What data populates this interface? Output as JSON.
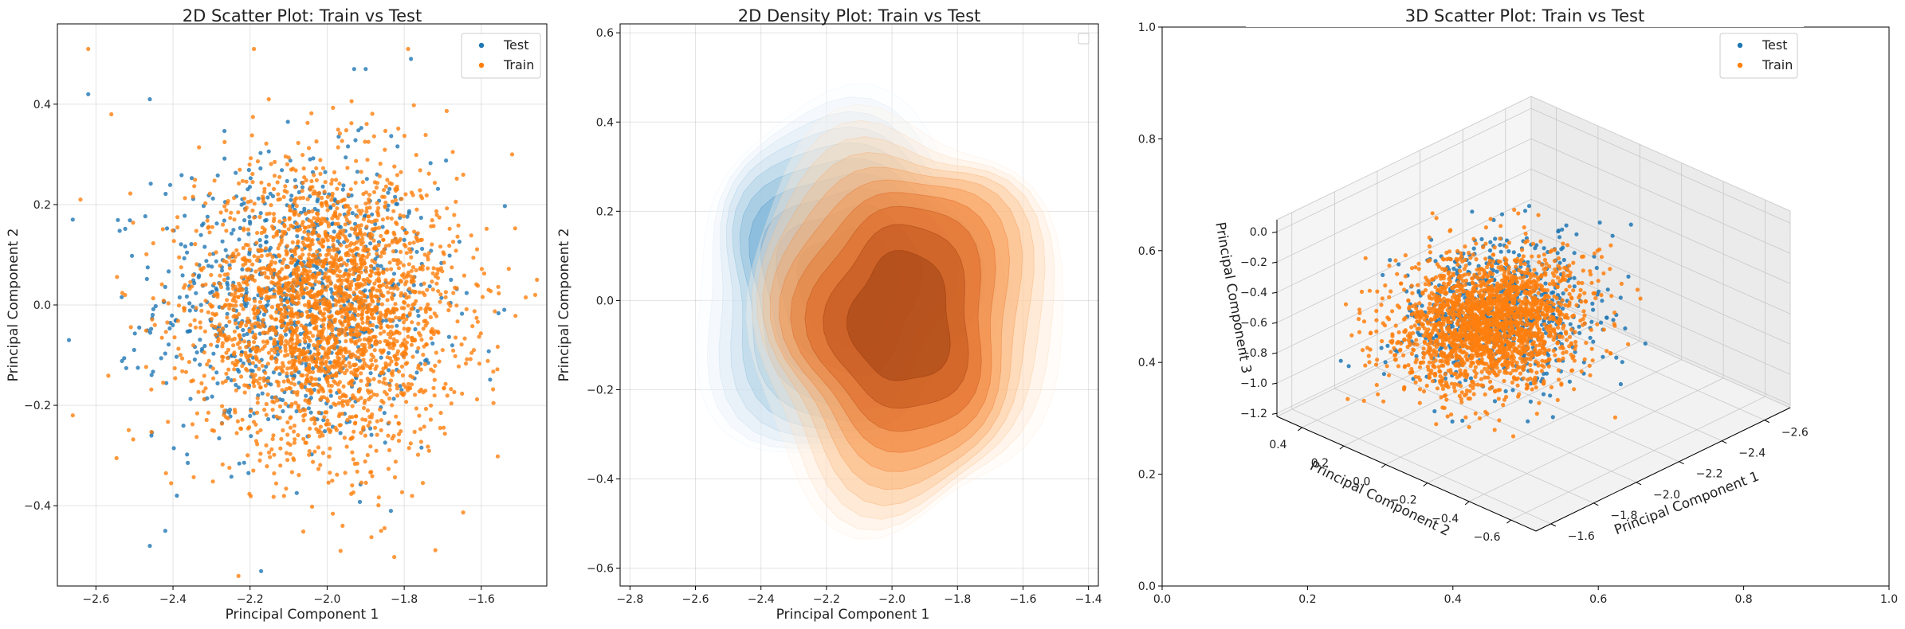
{
  "colors": {
    "test": "#1f77b4",
    "train": "#ff7f0e"
  },
  "chart_data": [
    {
      "type": "scatter",
      "title": "2D Scatter Plot: Train vs Test",
      "xlabel": "Principal Component 1",
      "ylabel": "Principal Component 2",
      "xlim": [
        -2.7,
        -1.43
      ],
      "ylim": [
        -0.56,
        0.56
      ],
      "xticks": [
        -2.6,
        -2.4,
        -2.2,
        -2.0,
        -1.8,
        -1.6
      ],
      "xtick_labels": [
        "−2.6",
        "−2.4",
        "−2.2",
        "−2.0",
        "−1.8",
        "−1.6"
      ],
      "yticks": [
        -0.4,
        -0.2,
        0.0,
        0.2,
        0.4
      ],
      "ytick_labels": [
        "−0.4",
        "−0.2",
        "0.0",
        "0.2",
        "0.4"
      ],
      "grid": true,
      "legend": {
        "location": "top-right",
        "entries": [
          "Test",
          "Train"
        ]
      },
      "series": [
        {
          "name": "Test",
          "color": "#1f77b4",
          "center": [
            -2.08,
            0.01
          ],
          "spread": [
            0.18,
            0.14
          ],
          "count": 900,
          "points": [
            [
              -2.46,
              -0.48
            ],
            [
              -2.42,
              -0.45
            ],
            [
              -2.67,
              -0.07
            ],
            [
              -2.62,
              0.42
            ],
            [
              -2.46,
              0.41
            ],
            [
              -2.39,
              -0.38
            ],
            [
              -1.93,
              0.47
            ],
            [
              -1.9,
              0.47
            ],
            [
              -2.66,
              0.17
            ]
          ]
        },
        {
          "name": "Train",
          "color": "#ff7f0e",
          "center": [
            -2.0,
            -0.01
          ],
          "spread": [
            0.17,
            0.14
          ],
          "count": 2600,
          "points": [
            [
              -2.62,
              0.51
            ],
            [
              -2.19,
              0.51
            ],
            [
              -1.79,
              0.51
            ],
            [
              -2.23,
              -0.54
            ],
            [
              -2.66,
              -0.22
            ],
            [
              -1.46,
              0.02
            ],
            [
              -1.52,
              0.3
            ],
            [
              -1.86,
              -0.45
            ],
            [
              -2.64,
              0.21
            ],
            [
              -2.56,
              0.38
            ],
            [
              -1.96,
              -0.44
            ]
          ]
        }
      ]
    },
    {
      "type": "heatmap",
      "subtype": "density",
      "title": "2D Density Plot: Train vs Test",
      "xlabel": "Principal Component 1",
      "ylabel": "Principal Component 2",
      "xlim": [
        -2.83,
        -1.37
      ],
      "ylim": [
        -0.64,
        0.62
      ],
      "xticks": [
        -2.8,
        -2.6,
        -2.4,
        -2.2,
        -2.0,
        -1.8,
        -1.6,
        -1.4
      ],
      "xtick_labels": [
        "−2.8",
        "−2.6",
        "−2.4",
        "−2.2",
        "−2.0",
        "−1.8",
        "−1.6",
        "−1.4"
      ],
      "yticks": [
        -0.6,
        -0.4,
        -0.2,
        0.0,
        0.2,
        0.4,
        0.6
      ],
      "ytick_labels": [
        "−0.6",
        "−0.4",
        "−0.2",
        "0.0",
        "0.2",
        "0.4",
        "0.6"
      ],
      "grid": true,
      "legend": {
        "location": "top-right",
        "entries": []
      },
      "series": [
        {
          "name": "Test",
          "colormap": "Blues",
          "center": [
            -2.13,
            0.03
          ],
          "spread": [
            0.22,
            0.19
          ],
          "levels": 10
        },
        {
          "name": "Train",
          "colormap": "Oranges",
          "center": [
            -1.97,
            -0.04
          ],
          "spread": [
            0.22,
            0.21
          ],
          "levels": 10
        }
      ]
    },
    {
      "type": "scatter",
      "subtype": "3d",
      "title": "3D Scatter Plot: Train vs Test",
      "xlabel": "Principal Component 1",
      "ylabel": "Principal Component 2",
      "zlabel": "Principal Component 3",
      "xlim": [
        -1.53,
        -2.72
      ],
      "ylim": [
        -0.72,
        0.52
      ],
      "zlim": [
        -1.22,
        0.08
      ],
      "xticks": [
        -1.6,
        -1.8,
        -2.0,
        -2.2,
        -2.4,
        -2.6
      ],
      "xtick_labels": [
        "−1.6",
        "−1.8",
        "−2.0",
        "−2.2",
        "−2.4",
        "−2.6"
      ],
      "yticks": [
        -0.6,
        -0.4,
        -0.2,
        0.0,
        0.2,
        0.4
      ],
      "ytick_labels": [
        "−0.6",
        "−0.4",
        "−0.2",
        "0.0",
        "0.2",
        "0.4"
      ],
      "zticks": [
        0.0,
        -0.2,
        -0.4,
        -0.6,
        -0.8,
        -1.0,
        -1.2
      ],
      "ztick_labels": [
        "0.0",
        "−0.2",
        "−0.4",
        "−0.6",
        "−0.8",
        "−1.0",
        "−1.2"
      ],
      "frame_xticks": [
        0.0,
        0.2,
        0.4,
        0.6,
        0.8,
        1.0
      ],
      "frame_xtick_labels": [
        "0.0",
        "0.2",
        "0.4",
        "0.6",
        "0.8",
        "1.0"
      ],
      "frame_yticks": [
        0.0,
        0.2,
        0.4,
        0.6,
        0.8,
        1.0
      ],
      "frame_ytick_labels": [
        "0.0",
        "0.2",
        "0.4",
        "0.6",
        "0.8",
        "1.0"
      ],
      "frame_lim": [
        0,
        1
      ],
      "grid": true,
      "legend": {
        "location": "top-right",
        "entries": [
          "Test",
          "Train"
        ]
      },
      "series": [
        {
          "name": "Test",
          "color": "#1f77b4",
          "center": [
            -2.06,
            0.0,
            -0.58
          ],
          "spread": [
            0.16,
            0.14,
            0.2
          ],
          "count": 700,
          "points": [
            [
              -2.0,
              -0.1,
              0.0
            ],
            [
              -2.3,
              0.1,
              -0.1
            ],
            [
              -1.7,
              0.35,
              -0.9
            ]
          ]
        },
        {
          "name": "Train",
          "color": "#ff7f0e",
          "center": [
            -2.0,
            -0.01,
            -0.6
          ],
          "spread": [
            0.16,
            0.14,
            0.18
          ],
          "count": 2200,
          "points": [
            [
              -1.9,
              -0.2,
              0.0
            ],
            [
              -2.2,
              0.05,
              -0.05
            ]
          ]
        }
      ]
    }
  ]
}
